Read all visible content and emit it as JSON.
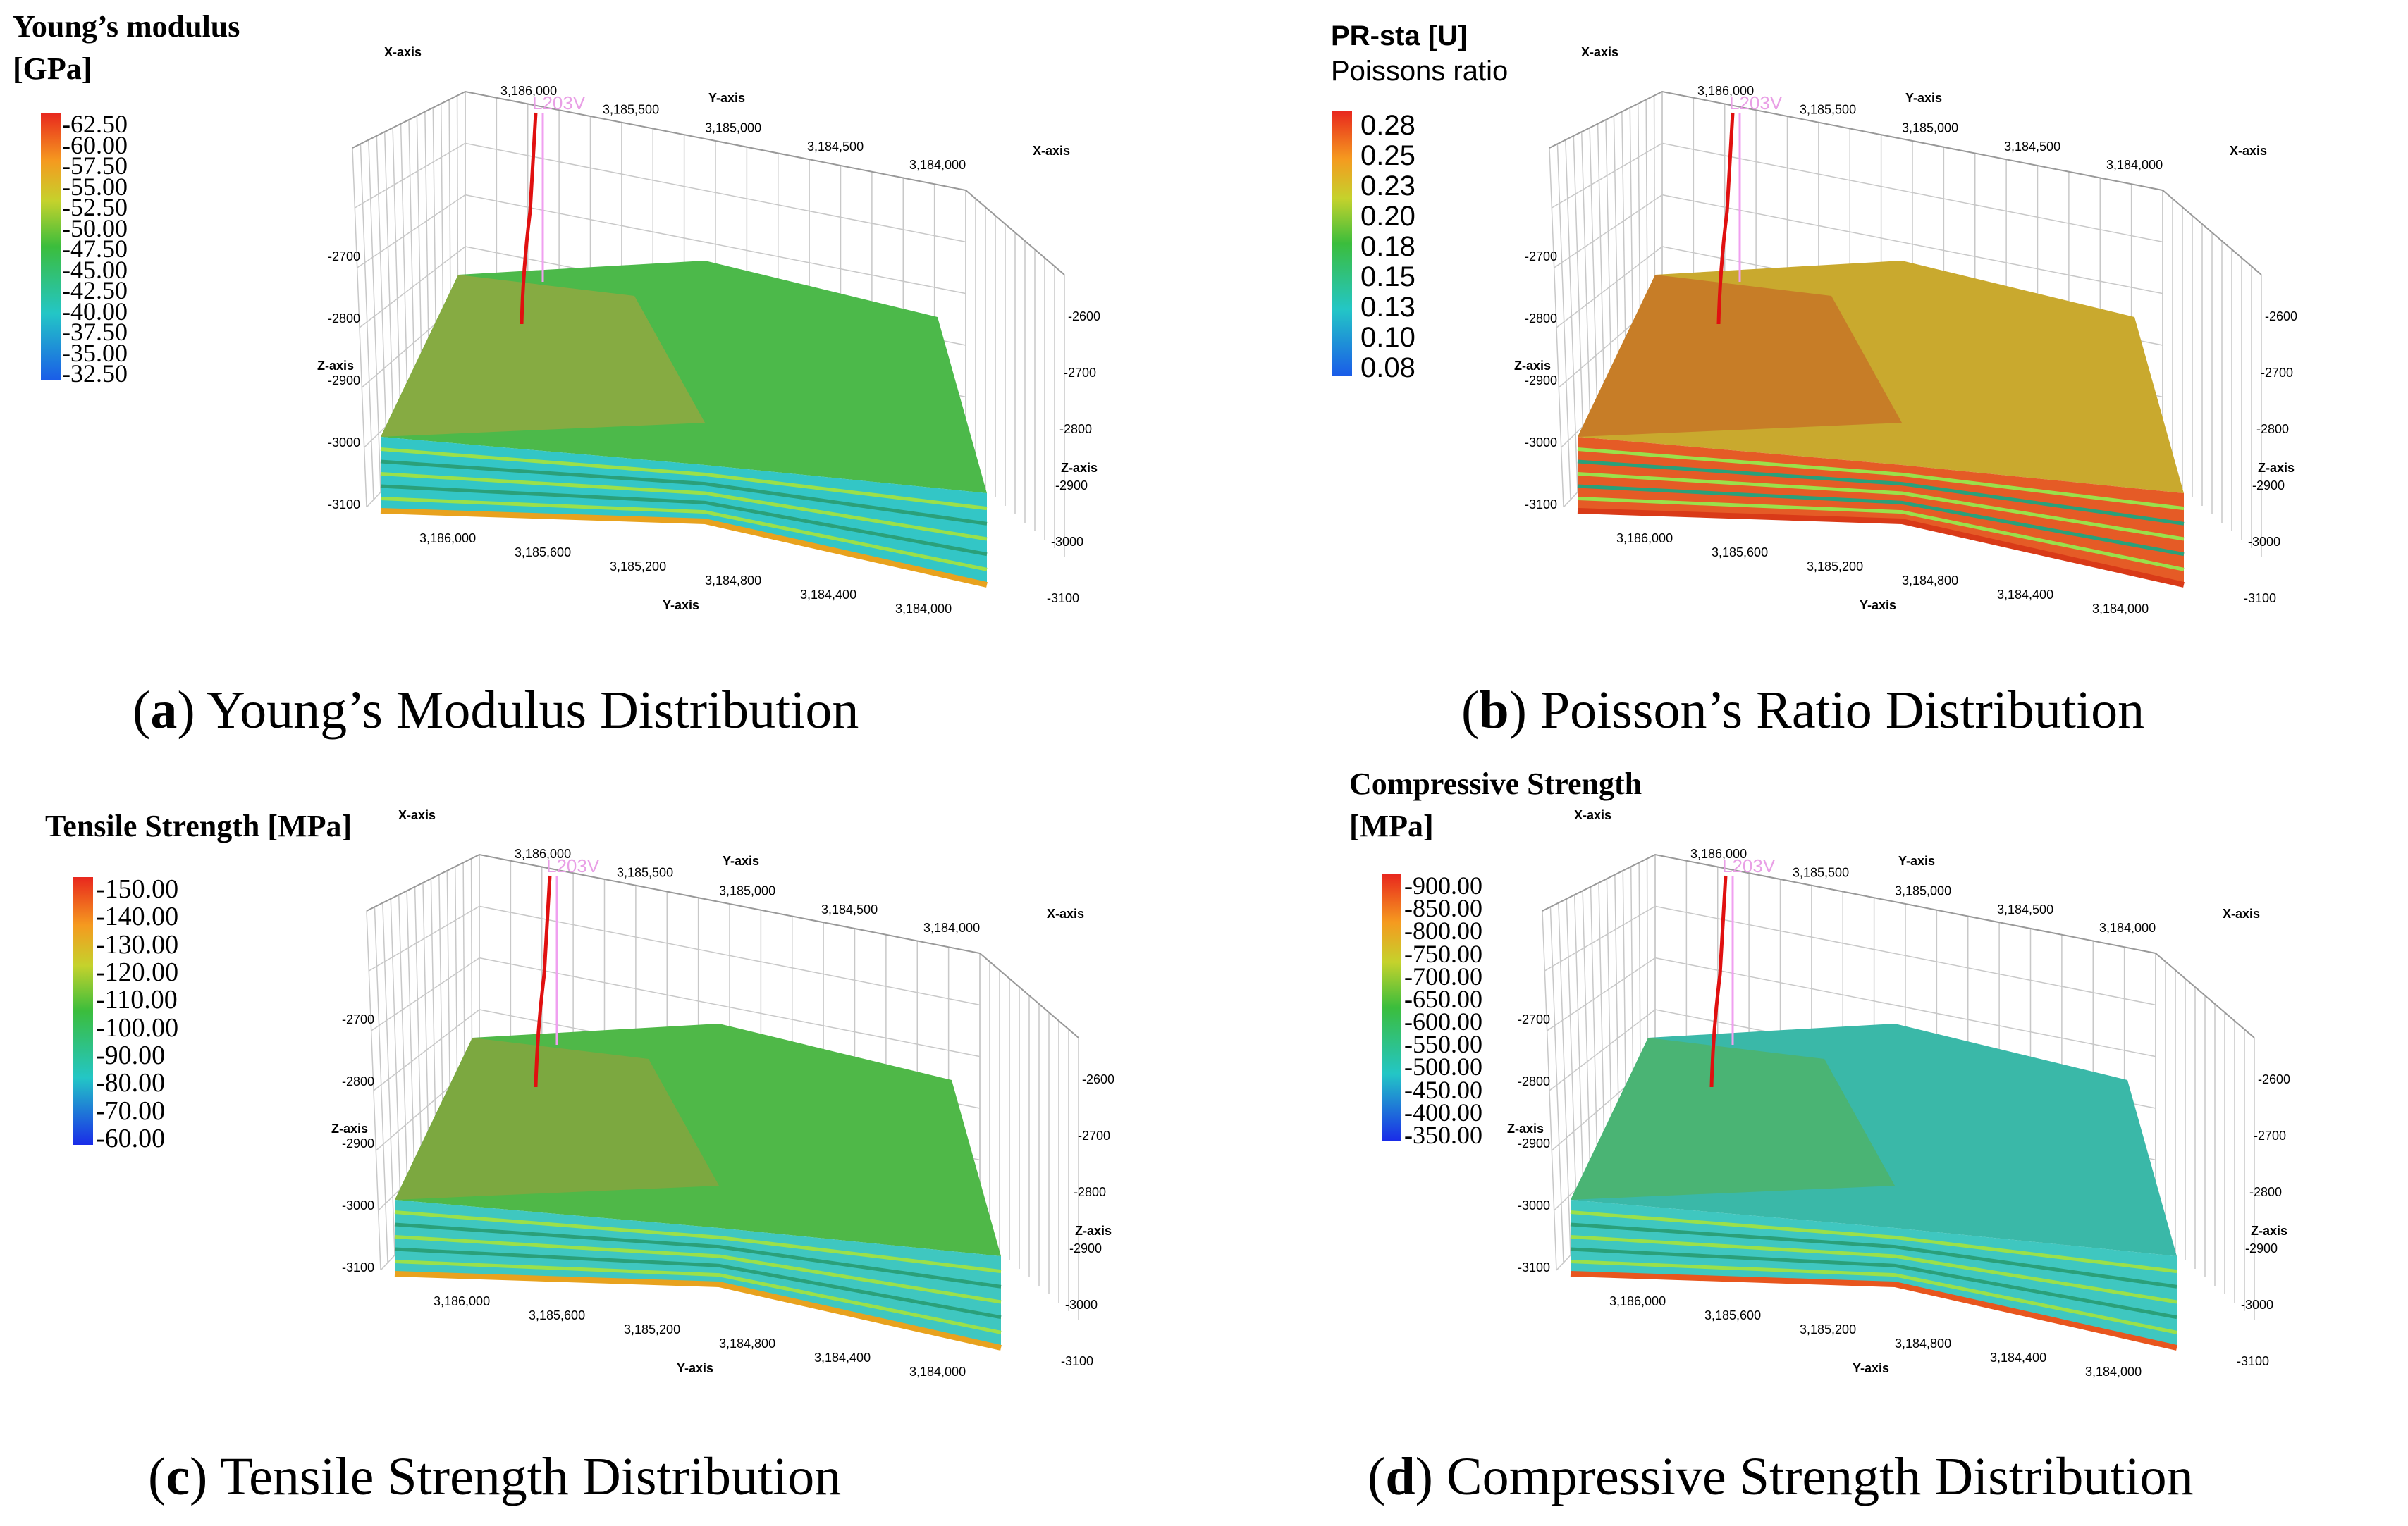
{
  "panels": [
    {
      "id": "a",
      "legend_title": [
        "Young’s modulus",
        "[GPa]"
      ],
      "ticks": [
        "-62.50",
        "-60.00",
        "-57.50",
        "-55.00",
        "-52.50",
        "-50.00",
        "-47.50",
        "-45.00",
        "-42.50",
        "-40.00",
        "-37.50",
        "-35.00",
        "-32.50"
      ],
      "caption_letter": "a",
      "caption_text": "Young’s Modulus Distribution",
      "surface_top": "#4cb94a",
      "surface_left": "#b7a03c",
      "layer_main": "#33c6c6",
      "layer_bottom": "#e8a21e"
    },
    {
      "id": "b",
      "legend_title": [
        "PR-sta [U]",
        "Poissons ratio"
      ],
      "ticks": [
        "0.28",
        "0.25",
        "0.23",
        "0.20",
        "0.18",
        "0.15",
        "0.13",
        "0.10",
        "0.08"
      ],
      "caption_letter": "b",
      "caption_text": "Poisson’s Ratio Distribution",
      "surface_top": "#c9a92e",
      "surface_left": "#c45a22",
      "layer_main": "#e55b26",
      "layer_bottom": "#d93a18"
    },
    {
      "id": "c",
      "legend_title": [
        "Tensile Strength [MPa]"
      ],
      "ticks": [
        "-150.00",
        "-140.00",
        "-130.00",
        "-120.00",
        "-110.00",
        "-100.00",
        "-90.00",
        "-80.00",
        "-70.00",
        "-60.00"
      ],
      "caption_letter": "c",
      "caption_text": "Tensile Strength Distribution",
      "surface_top": "#4fb848",
      "surface_left": "#a39a3a",
      "layer_main": "#3fc7c0",
      "layer_bottom": "#e8a21e"
    },
    {
      "id": "d",
      "legend_title": [
        "Compressive Strength",
        "[MPa]"
      ],
      "ticks": [
        "-900.00",
        "-850.00",
        "-800.00",
        "-750.00",
        "-700.00",
        "-650.00",
        "-600.00",
        "-550.00",
        "-500.00",
        "-450.00",
        "-400.00",
        "-350.00"
      ],
      "caption_letter": "d",
      "caption_text": "Compressive Strength Distribution",
      "surface_top": "#3ab8a8",
      "surface_left": "#58b048",
      "layer_main": "#3fc7c0",
      "layer_bottom": "#e8561e"
    }
  ],
  "axes": {
    "x_name": "X-axis",
    "y_name": "Y-axis",
    "z_name": "Z-axis",
    "well_name": "L203V",
    "top_ticks": [
      "3,186,000",
      "3,185,500",
      "3,185,000",
      "3,184,500",
      "3,184,000"
    ],
    "bottom_ticks": [
      "3,186,000",
      "3,185,600",
      "3,185,200",
      "3,184,800",
      "3,184,400",
      "3,184,000"
    ],
    "left_z_ticks": [
      "-2700",
      "-2800",
      "-2900",
      "-3000",
      "-3100"
    ],
    "right_z_ticks": [
      "-2600",
      "-2700",
      "-2800",
      "-2900",
      "-3000",
      "-3100"
    ]
  },
  "colors": {
    "axis_grid": "#c8c8c8",
    "well_red": "#e01010",
    "well_pink": "#f0a0f0"
  }
}
